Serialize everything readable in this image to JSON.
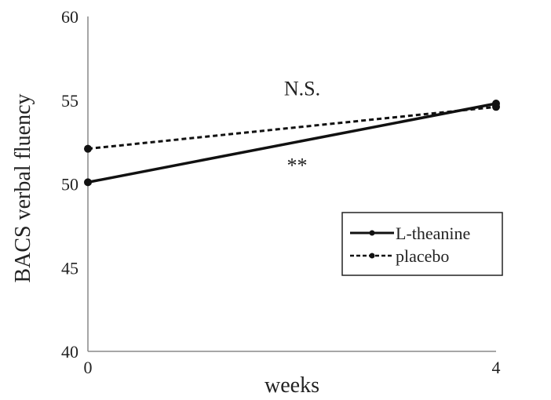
{
  "chart_data": {
    "type": "line",
    "x": [
      0,
      4
    ],
    "xticks": [
      "0",
      "4"
    ],
    "xlabel": "weeks",
    "ylabel": "BACS verbal fluency",
    "ylim": [
      40,
      60
    ],
    "yticks": [
      "40",
      "45",
      "50",
      "55",
      "60"
    ],
    "grid": false,
    "legend_position": "right",
    "series": [
      {
        "name": "L-theanine",
        "values": [
          50.1,
          54.8
        ],
        "style": "solid",
        "color": "#111111"
      },
      {
        "name": "placebo",
        "values": [
          52.1,
          54.6
        ],
        "style": "dashed",
        "color": "#111111"
      }
    ],
    "annotations": [
      {
        "text": "N.S.",
        "x": 2.1,
        "y": 55.3
      },
      {
        "text": "**",
        "x": 2.05,
        "y": 50.7
      }
    ]
  }
}
